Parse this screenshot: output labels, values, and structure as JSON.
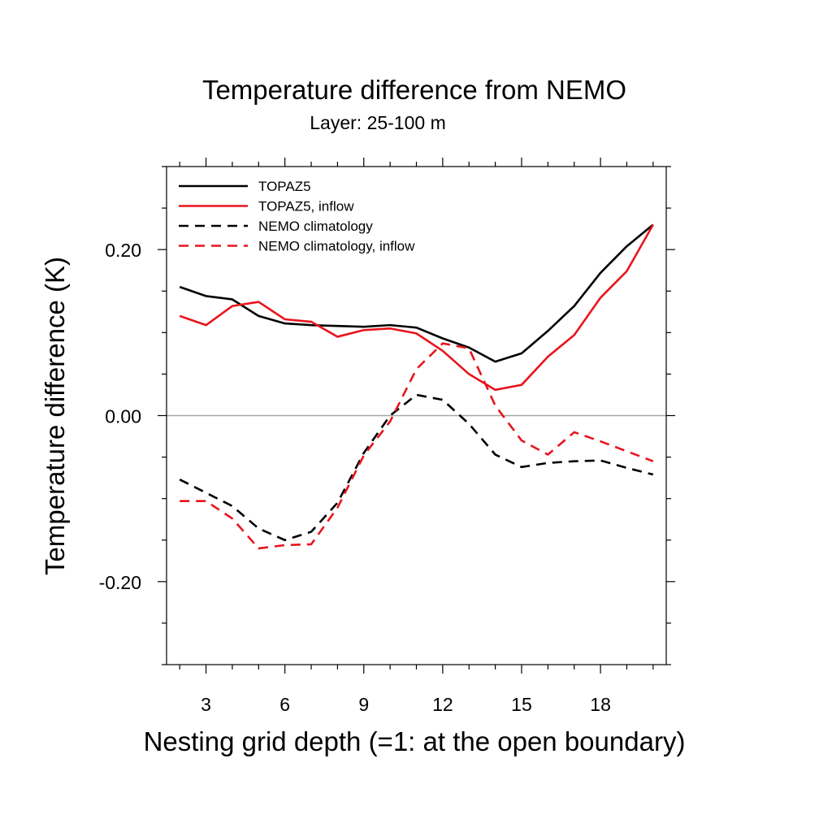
{
  "chart_data": {
    "type": "line",
    "title": "Temperature difference from NEMO",
    "subtitle": "Layer: 25-100 m",
    "xlabel": "Nesting grid depth (=1: at the open boundary)",
    "ylabel": "Temperature difference (K)",
    "xlim": [
      1.5,
      20.5
    ],
    "ylim": [
      -0.3,
      0.3
    ],
    "x_ticks": [
      3,
      6,
      9,
      12,
      15,
      18
    ],
    "y_ticks": [
      -0.2,
      0.0,
      0.2
    ],
    "y_tick_labels": [
      "-0.20",
      "0.00",
      "0.20"
    ],
    "zero_line": true,
    "grid": false,
    "legend_position": "top-left",
    "x": [
      2,
      3,
      4,
      5,
      6,
      7,
      8,
      9,
      10,
      11,
      12,
      13,
      14,
      15,
      16,
      17,
      18,
      19,
      20
    ],
    "series": [
      {
        "name": "TOPAZ5",
        "color": "#000000",
        "dash": "solid",
        "values": [
          0.155,
          0.144,
          0.14,
          0.12,
          0.111,
          0.109,
          0.108,
          0.107,
          0.109,
          0.106,
          0.093,
          0.082,
          0.065,
          0.075,
          0.102,
          0.132,
          0.172,
          0.204,
          0.23
        ]
      },
      {
        "name": "TOPAZ5, inflow",
        "color": "#e8141c",
        "dash": "solid",
        "values": [
          0.12,
          0.109,
          0.132,
          0.137,
          0.116,
          0.113,
          0.095,
          0.103,
          0.105,
          0.099,
          0.078,
          0.05,
          0.031,
          0.037,
          0.071,
          0.097,
          0.142,
          0.174,
          0.23
        ]
      },
      {
        "name": "NEMO climatology",
        "color": "#000000",
        "dash": "dashed",
        "values": [
          -0.077,
          -0.093,
          -0.109,
          -0.136,
          -0.15,
          -0.14,
          -0.105,
          -0.045,
          0.0,
          0.025,
          0.019,
          -0.01,
          -0.047,
          -0.062,
          -0.057,
          -0.055,
          -0.054,
          -0.063,
          -0.071
        ]
      },
      {
        "name": "NEMO climatology, inflow",
        "color": "#e8141c",
        "dash": "dashed",
        "values": [
          -0.103,
          -0.103,
          -0.124,
          -0.16,
          -0.156,
          -0.155,
          -0.111,
          -0.048,
          -0.007,
          0.056,
          0.087,
          0.081,
          0.012,
          -0.03,
          -0.047,
          -0.02,
          -0.031,
          -0.043,
          -0.055
        ]
      }
    ]
  }
}
